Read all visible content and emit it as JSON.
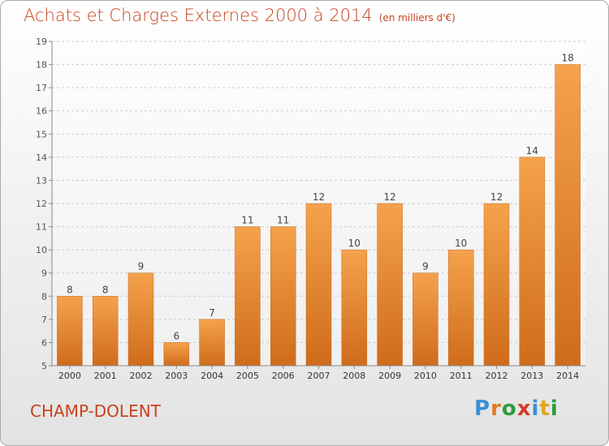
{
  "title": {
    "main": "Achats et Charges Externes 2000 à 2014",
    "unit": "(en milliers d'€)"
  },
  "commune": "CHAMP-DOLENT",
  "logo": {
    "text": "Proxiti",
    "letters": [
      "P",
      "r",
      "o",
      "x",
      "i",
      "t",
      "i"
    ],
    "colors": [
      "#3a8fd6",
      "#e07a1e",
      "#2e9a3d",
      "#d63a2a",
      "#3a8fd6",
      "#e0a81e",
      "#2e9a3d"
    ]
  },
  "colors": {
    "bar_top": "#f5a24c",
    "bar_bottom": "#cf6c1b",
    "title": "#c8431e",
    "axis": "#888888",
    "grid": "#cccccc"
  },
  "chart_data": {
    "type": "bar",
    "title": "Achats et Charges Externes 2000 à 2014",
    "xlabel": "",
    "ylabel": "",
    "categories": [
      "2000",
      "2001",
      "2002",
      "2003",
      "2004",
      "2005",
      "2006",
      "2007",
      "2008",
      "2009",
      "2010",
      "2011",
      "2012",
      "2013",
      "2014"
    ],
    "values": [
      8,
      8,
      9,
      6,
      7,
      11,
      11,
      12,
      10,
      12,
      9,
      10,
      12,
      14,
      18
    ],
    "ylim": [
      5,
      19
    ],
    "yticks": [
      5,
      6,
      7,
      8,
      9,
      10,
      11,
      12,
      13,
      14,
      15,
      16,
      17,
      18,
      19
    ],
    "grid": "horizontal dashed",
    "data_labels": true
  }
}
